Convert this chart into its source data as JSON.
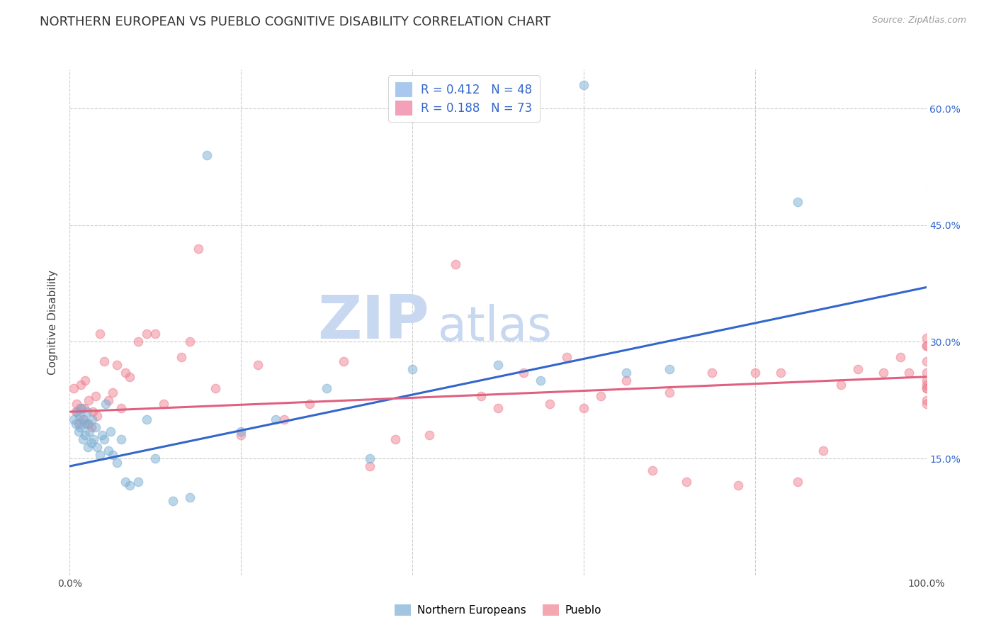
{
  "title": "NORTHERN EUROPEAN VS PUEBLO COGNITIVE DISABILITY CORRELATION CHART",
  "source": "Source: ZipAtlas.com",
  "ylabel": "Cognitive Disability",
  "xlim": [
    0,
    1
  ],
  "ylim": [
    0,
    0.65
  ],
  "x_ticks": [
    0.0,
    0.2,
    0.4,
    0.6,
    0.8,
    1.0
  ],
  "x_tick_labels": [
    "0.0%",
    "",
    "",
    "",
    "",
    "100.0%"
  ],
  "y_tick_labels_right": [
    "15.0%",
    "30.0%",
    "45.0%",
    "60.0%"
  ],
  "y_tick_values_right": [
    0.15,
    0.3,
    0.45,
    0.6
  ],
  "legend_label1": "R = 0.412   N = 48",
  "legend_label2": "R = 0.188   N = 73",
  "legend_color1": "#a8c8f0",
  "legend_color2": "#f4a0b8",
  "color_ne": "#7bafd4",
  "color_pueblo": "#f08090",
  "color_ne_line": "#3366cc",
  "color_pueblo_line": "#e06080",
  "watermark_zip": "ZIP",
  "watermark_atlas": "atlas",
  "watermark_color": "#c8d8f0",
  "ne_x": [
    0.005,
    0.007,
    0.009,
    0.01,
    0.011,
    0.012,
    0.014,
    0.015,
    0.016,
    0.017,
    0.018,
    0.02,
    0.021,
    0.022,
    0.023,
    0.025,
    0.026,
    0.028,
    0.03,
    0.032,
    0.035,
    0.038,
    0.04,
    0.042,
    0.045,
    0.048,
    0.05,
    0.055,
    0.06,
    0.065,
    0.07,
    0.08,
    0.09,
    0.1,
    0.12,
    0.14,
    0.16,
    0.2,
    0.24,
    0.3,
    0.35,
    0.4,
    0.5,
    0.55,
    0.6,
    0.65,
    0.7,
    0.85
  ],
  "ne_y": [
    0.2,
    0.195,
    0.21,
    0.185,
    0.205,
    0.19,
    0.215,
    0.175,
    0.2,
    0.195,
    0.18,
    0.21,
    0.165,
    0.195,
    0.185,
    0.17,
    0.2,
    0.175,
    0.19,
    0.165,
    0.155,
    0.18,
    0.175,
    0.22,
    0.16,
    0.185,
    0.155,
    0.145,
    0.175,
    0.12,
    0.115,
    0.12,
    0.2,
    0.15,
    0.095,
    0.1,
    0.54,
    0.185,
    0.2,
    0.24,
    0.15,
    0.265,
    0.27,
    0.25,
    0.63,
    0.26,
    0.265,
    0.48
  ],
  "pueblo_x": [
    0.005,
    0.007,
    0.008,
    0.01,
    0.012,
    0.013,
    0.015,
    0.017,
    0.018,
    0.02,
    0.022,
    0.025,
    0.027,
    0.03,
    0.032,
    0.035,
    0.04,
    0.045,
    0.05,
    0.055,
    0.06,
    0.065,
    0.07,
    0.08,
    0.09,
    0.1,
    0.11,
    0.13,
    0.14,
    0.15,
    0.17,
    0.2,
    0.22,
    0.25,
    0.28,
    0.32,
    0.35,
    0.38,
    0.42,
    0.45,
    0.48,
    0.5,
    0.53,
    0.56,
    0.58,
    0.6,
    0.62,
    0.65,
    0.68,
    0.7,
    0.72,
    0.75,
    0.78,
    0.8,
    0.83,
    0.85,
    0.88,
    0.9,
    0.92,
    0.95,
    0.97,
    0.98,
    1.0,
    1.0,
    1.0,
    1.0,
    1.0,
    1.0,
    1.0,
    1.0,
    1.0,
    1.0,
    1.0
  ],
  "pueblo_y": [
    0.24,
    0.21,
    0.22,
    0.195,
    0.215,
    0.245,
    0.2,
    0.215,
    0.25,
    0.195,
    0.225,
    0.19,
    0.21,
    0.23,
    0.205,
    0.31,
    0.275,
    0.225,
    0.235,
    0.27,
    0.215,
    0.26,
    0.255,
    0.3,
    0.31,
    0.31,
    0.22,
    0.28,
    0.3,
    0.42,
    0.24,
    0.18,
    0.27,
    0.2,
    0.22,
    0.275,
    0.14,
    0.175,
    0.18,
    0.4,
    0.23,
    0.215,
    0.26,
    0.22,
    0.28,
    0.215,
    0.23,
    0.25,
    0.135,
    0.235,
    0.12,
    0.26,
    0.115,
    0.26,
    0.26,
    0.12,
    0.16,
    0.245,
    0.265,
    0.26,
    0.28,
    0.26,
    0.26,
    0.225,
    0.24,
    0.295,
    0.25,
    0.275,
    0.22,
    0.245,
    0.305,
    0.295,
    0.24
  ],
  "ne_line_x": [
    0.0,
    1.0
  ],
  "ne_line_y": [
    0.14,
    0.37
  ],
  "pueblo_line_x": [
    0.0,
    1.0
  ],
  "pueblo_line_y": [
    0.21,
    0.255
  ],
  "footer_label1": "Northern Europeans",
  "footer_label2": "Pueblo",
  "background_color": "#ffffff",
  "grid_color": "#cccccc",
  "title_fontsize": 13,
  "axis_label_fontsize": 11,
  "marker_size": 80
}
